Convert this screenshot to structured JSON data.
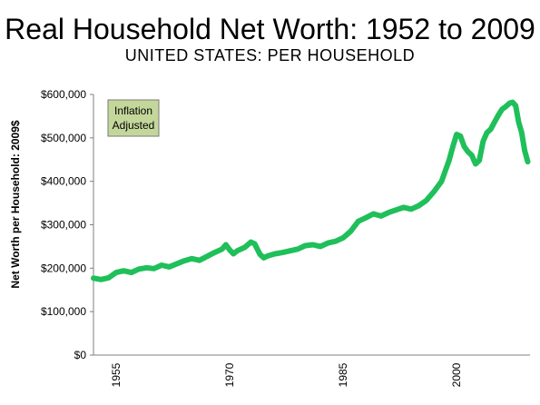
{
  "chart_data": {
    "type": "line",
    "title": "Real Household Net Worth: 1952 to 2009",
    "subtitle": "UNITED STATES: PER HOUSEHOLD",
    "ylabel": "Net Worth per Household: 2009$",
    "xlabel": "",
    "annotation": [
      "Inflation",
      "Adjusted"
    ],
    "xlim": [
      1952,
      2009.7
    ],
    "ylim": [
      0,
      600000
    ],
    "y_ticks": [
      {
        "value": 0,
        "label": "$0"
      },
      {
        "value": 100000,
        "label": "$100,000"
      },
      {
        "value": 200000,
        "label": "$200,000"
      },
      {
        "value": 300000,
        "label": "$300,000"
      },
      {
        "value": 400000,
        "label": "$400,000"
      },
      {
        "value": 500000,
        "label": "$500,000"
      },
      {
        "value": 600000,
        "label": "$600,000"
      }
    ],
    "x_ticks": [
      {
        "value": 1955,
        "label": "1955"
      },
      {
        "value": 1970,
        "label": "1970"
      },
      {
        "value": 1985,
        "label": "1985"
      },
      {
        "value": 2000,
        "label": "2000"
      }
    ],
    "grid": false,
    "series": [
      {
        "color": "#1fbf5a",
        "points": [
          [
            1952.0,
            177000
          ],
          [
            1953.0,
            174000
          ],
          [
            1954.0,
            178000
          ],
          [
            1955.0,
            190000
          ],
          [
            1956.0,
            194000
          ],
          [
            1957.0,
            190000
          ],
          [
            1958.0,
            198000
          ],
          [
            1959.0,
            201000
          ],
          [
            1960.0,
            199000
          ],
          [
            1961.0,
            207000
          ],
          [
            1962.0,
            203000
          ],
          [
            1963.0,
            210000
          ],
          [
            1964.0,
            217000
          ],
          [
            1965.0,
            222000
          ],
          [
            1966.0,
            218000
          ],
          [
            1967.0,
            227000
          ],
          [
            1968.0,
            236000
          ],
          [
            1969.0,
            244000
          ],
          [
            1969.5,
            254000
          ],
          [
            1970.0,
            242000
          ],
          [
            1970.5,
            233000
          ],
          [
            1971.0,
            240000
          ],
          [
            1972.0,
            248000
          ],
          [
            1972.8,
            260000
          ],
          [
            1973.3,
            256000
          ],
          [
            1974.0,
            232000
          ],
          [
            1974.5,
            224000
          ],
          [
            1975.0,
            228000
          ],
          [
            1976.0,
            233000
          ],
          [
            1977.0,
            236000
          ],
          [
            1978.0,
            240000
          ],
          [
            1979.0,
            244000
          ],
          [
            1980.0,
            252000
          ],
          [
            1981.0,
            254000
          ],
          [
            1982.0,
            250000
          ],
          [
            1983.0,
            258000
          ],
          [
            1984.0,
            262000
          ],
          [
            1985.0,
            270000
          ],
          [
            1986.0,
            285000
          ],
          [
            1987.0,
            308000
          ],
          [
            1988.0,
            316000
          ],
          [
            1989.0,
            325000
          ],
          [
            1990.0,
            320000
          ],
          [
            1991.0,
            328000
          ],
          [
            1992.0,
            334000
          ],
          [
            1993.0,
            340000
          ],
          [
            1994.0,
            336000
          ],
          [
            1995.0,
            344000
          ],
          [
            1996.0,
            356000
          ],
          [
            1997.0,
            376000
          ],
          [
            1998.0,
            400000
          ],
          [
            1998.5,
            424000
          ],
          [
            1999.0,
            448000
          ],
          [
            1999.5,
            480000
          ],
          [
            2000.0,
            508000
          ],
          [
            2000.5,
            504000
          ],
          [
            2001.0,
            480000
          ],
          [
            2001.5,
            468000
          ],
          [
            2002.0,
            460000
          ],
          [
            2002.5,
            440000
          ],
          [
            2003.0,
            448000
          ],
          [
            2003.5,
            492000
          ],
          [
            2004.0,
            512000
          ],
          [
            2004.5,
            520000
          ],
          [
            2005.0,
            536000
          ],
          [
            2005.5,
            552000
          ],
          [
            2006.0,
            566000
          ],
          [
            2006.5,
            572000
          ],
          [
            2007.0,
            580000
          ],
          [
            2007.4,
            582000
          ],
          [
            2007.8,
            574000
          ],
          [
            2008.2,
            536000
          ],
          [
            2008.6,
            512000
          ],
          [
            2009.0,
            470000
          ],
          [
            2009.4,
            445000
          ]
        ]
      }
    ]
  }
}
